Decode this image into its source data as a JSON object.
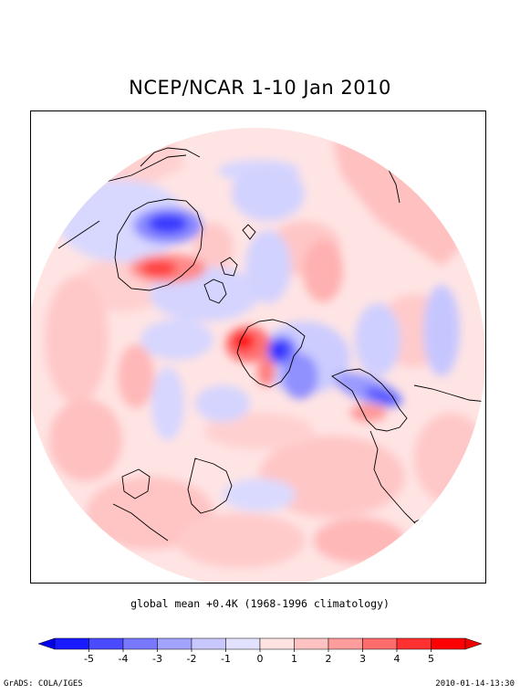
{
  "title": "NCEP/NCAR 1-10 Jan 2010",
  "subtitle": "global mean +0.4K (1968-1996 climatology)",
  "footer": {
    "credit": "GrADS: COLA/IGES",
    "timestamp": "2010-01-14-13:30"
  },
  "colorbar": {
    "ticks": [
      "-5",
      "-4",
      "-3",
      "-2",
      "-1",
      "0",
      "1",
      "2",
      "3",
      "4",
      "5"
    ],
    "colors": [
      "#1a1aff",
      "#4a4aff",
      "#7878ff",
      "#a2a2ff",
      "#c8c8ff",
      "#e2e2ff",
      "#ffe2e2",
      "#ffc2c2",
      "#ff9c9c",
      "#ff6c6c",
      "#ff3030",
      "#ff0000"
    ],
    "min_color": "#0000ee",
    "max_color": "#ee0000"
  },
  "map": {
    "projection": "north-polar-stereographic",
    "background_color": "#ffe4e4",
    "coast_color": "#000000"
  }
}
